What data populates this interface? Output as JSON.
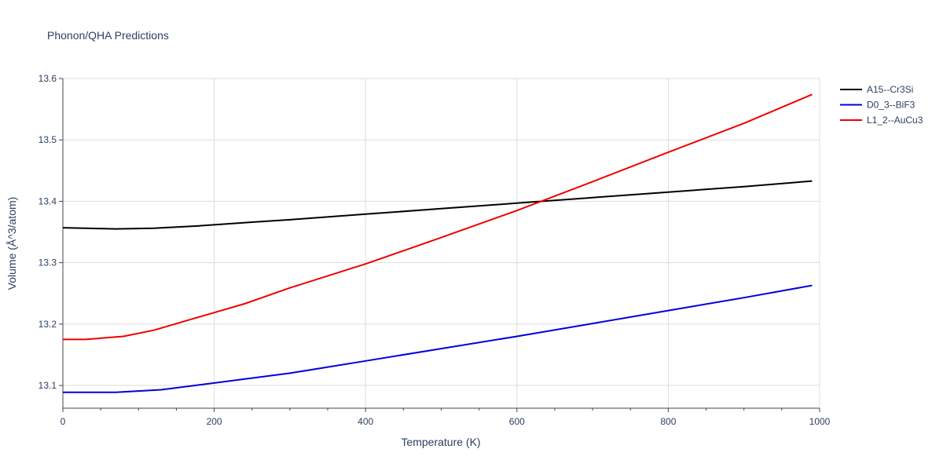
{
  "chart_data": {
    "type": "line",
    "title": "Phonon/QHA Predictions",
    "xlabel": "Temperature (K)",
    "ylabel": "Volume (Å^3/atom)",
    "xlim": [
      0,
      1000
    ],
    "ylim": [
      13.063,
      13.6
    ],
    "x_ticks": [
      0,
      200,
      400,
      600,
      800,
      1000
    ],
    "x_tick_labels": [
      "0",
      "200",
      "400",
      "600",
      "800",
      "1000"
    ],
    "y_ticks": [
      13.1,
      13.2,
      13.3,
      13.4,
      13.5,
      13.6
    ],
    "y_tick_labels": [
      "13.1",
      "13.2",
      "13.3",
      "13.4",
      "13.5",
      "13.6"
    ],
    "grid": true,
    "legend_position": "top-right",
    "series": [
      {
        "name": "A15--Cr3Si",
        "color": "#000000",
        "x": [
          0,
          30,
          70,
          120,
          180,
          250,
          300,
          400,
          500,
          600,
          700,
          800,
          900,
          990
        ],
        "y": [
          13.357,
          13.356,
          13.355,
          13.356,
          13.36,
          13.366,
          13.37,
          13.379,
          13.388,
          13.397,
          13.406,
          13.415,
          13.424,
          13.433
        ]
      },
      {
        "name": "D0_3--BiF3",
        "color": "#0000dd",
        "x": [
          0,
          30,
          70,
          130,
          200,
          300,
          400,
          500,
          600,
          700,
          800,
          900,
          990
        ],
        "y": [
          13.089,
          13.089,
          13.089,
          13.093,
          13.104,
          13.12,
          13.14,
          13.16,
          13.18,
          13.201,
          13.222,
          13.243,
          13.263
        ]
      },
      {
        "name": "L1_2--AuCu3",
        "color": "#ee0000",
        "x": [
          0,
          30,
          80,
          120,
          170,
          240,
          300,
          400,
          500,
          600,
          700,
          800,
          900,
          990
        ],
        "y": [
          13.175,
          13.175,
          13.18,
          13.19,
          13.208,
          13.233,
          13.259,
          13.298,
          13.341,
          13.385,
          13.432,
          13.48,
          13.527,
          13.574
        ]
      }
    ]
  }
}
